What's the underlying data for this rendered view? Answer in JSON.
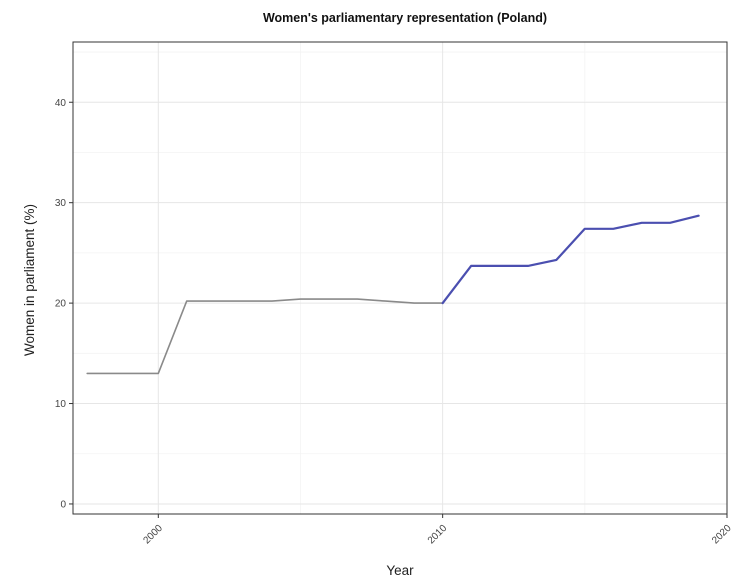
{
  "chart_data": {
    "type": "line",
    "title": "Women's parliamentary representation (Poland)",
    "xlabel": "Year",
    "ylabel": "Women in parliament (%)",
    "xlim": [
      1997,
      2020
    ],
    "ylim": [
      -1,
      46
    ],
    "x_ticks": [
      2000,
      2010,
      2020
    ],
    "x_tick_labels": [
      "2000",
      "2010",
      "2020"
    ],
    "y_ticks": [
      0,
      10,
      20,
      30,
      40
    ],
    "y_tick_labels": [
      "0",
      "10",
      "20",
      "30",
      "40"
    ],
    "grid": true,
    "legend": "none",
    "series": [
      {
        "color": "#8a8a8a",
        "points": [
          [
            1997.5,
            13.0
          ],
          [
            2000.0,
            13.0
          ],
          [
            2001.0,
            20.2
          ],
          [
            2002.0,
            20.2
          ],
          [
            2003.0,
            20.2
          ],
          [
            2004.0,
            20.2
          ],
          [
            2005.0,
            20.4
          ],
          [
            2006.0,
            20.4
          ],
          [
            2007.0,
            20.4
          ],
          [
            2008.0,
            20.2
          ],
          [
            2009.0,
            20.0
          ],
          [
            2010.0,
            20.0
          ]
        ]
      },
      {
        "color": "#4b4fb0",
        "points": [
          [
            2010.0,
            20.0
          ],
          [
            2011.0,
            23.7
          ],
          [
            2012.0,
            23.7
          ],
          [
            2013.0,
            23.7
          ],
          [
            2014.0,
            24.3
          ],
          [
            2015.0,
            27.4
          ],
          [
            2016.0,
            27.4
          ],
          [
            2017.0,
            28.0
          ],
          [
            2018.0,
            28.0
          ],
          [
            2019.0,
            28.7
          ]
        ]
      }
    ]
  }
}
